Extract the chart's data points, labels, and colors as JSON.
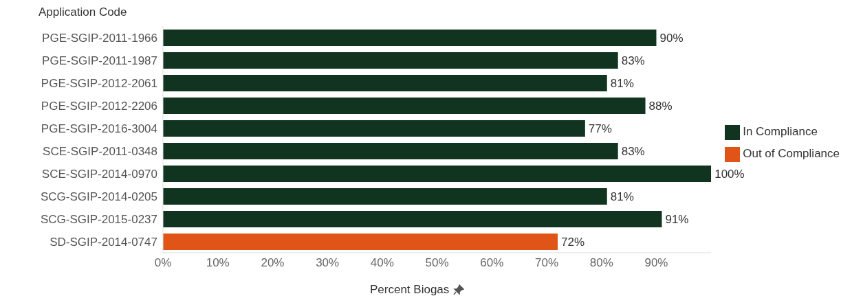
{
  "chart_data": {
    "type": "bar",
    "orientation": "horizontal",
    "stacked": true,
    "ylabel": "Application Code",
    "xlabel": "Percent Biogas",
    "categories": [
      "PGE-SGIP-2011-1966",
      "PGE-SGIP-2011-1987",
      "PGE-SGIP-2012-2061",
      "PGE-SGIP-2012-2206",
      "PGE-SGIP-2016-3004",
      "SCE-SGIP-2011-0348",
      "SCE-SGIP-2014-0970",
      "SCG-SGIP-2014-0205",
      "SCG-SGIP-2015-0237",
      "SD-SGIP-2014-0747"
    ],
    "series": [
      {
        "name": "In Compliance",
        "color": "#113420",
        "values": [
          90,
          83,
          81,
          88,
          77,
          83,
          100,
          81,
          91,
          null
        ],
        "value_labels": [
          "90%",
          "83%",
          "81%",
          "88%",
          "77%",
          "83%",
          "100%",
          "81%",
          "91%",
          null
        ]
      },
      {
        "name": "Out of Compliance",
        "color": "#e05417",
        "values": [
          null,
          null,
          null,
          null,
          null,
          null,
          null,
          null,
          null,
          72
        ],
        "value_labels": [
          null,
          null,
          null,
          null,
          null,
          null,
          null,
          null,
          null,
          "72%"
        ]
      }
    ],
    "xlim": [
      0,
      100
    ],
    "xticks": [
      {
        "value": 0,
        "label": "0%"
      },
      {
        "value": 10,
        "label": "10%"
      },
      {
        "value": 20,
        "label": "20%"
      },
      {
        "value": 30,
        "label": "30%"
      },
      {
        "value": 40,
        "label": "40%"
      },
      {
        "value": 50,
        "label": "50%"
      },
      {
        "value": 60,
        "label": "60%"
      },
      {
        "value": 70,
        "label": "70%"
      },
      {
        "value": 80,
        "label": "80%"
      },
      {
        "value": 90,
        "label": "90%"
      }
    ],
    "legend": "right",
    "grid": false
  }
}
